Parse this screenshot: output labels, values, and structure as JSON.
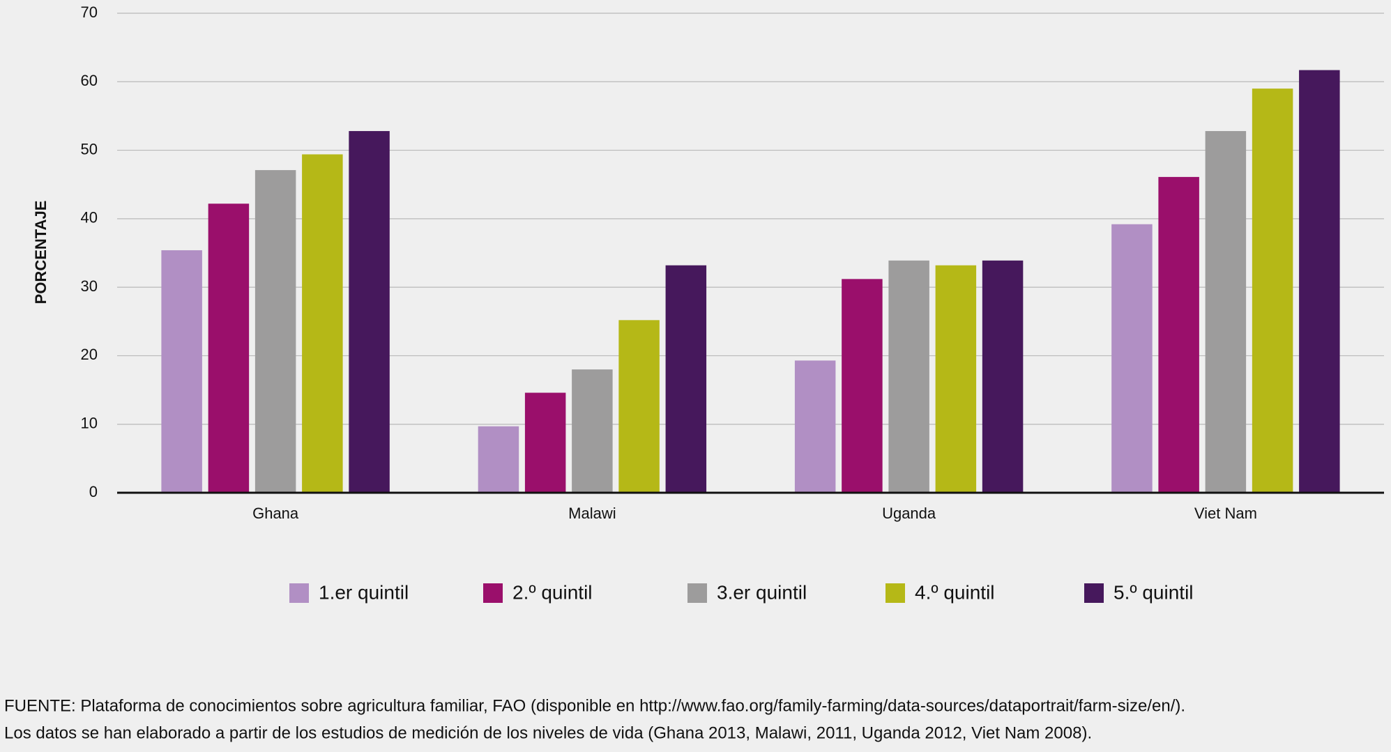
{
  "chart_data": {
    "type": "bar",
    "y_label": "PORCENTAJE",
    "categories": [
      "Ghana",
      "Malawi",
      "Uganda",
      "Viet Nam"
    ],
    "series": [
      {
        "name": "1.er quintil",
        "color": "#b18fc4",
        "values": [
          35.4,
          9.7,
          19.3,
          39.2
        ]
      },
      {
        "name": "2.º quintil",
        "color": "#9a0f6b",
        "values": [
          42.2,
          14.6,
          31.2,
          46.1
        ]
      },
      {
        "name": "3.er quintil",
        "color": "#9d9c9c",
        "values": [
          47.1,
          18.0,
          33.9,
          52.8
        ]
      },
      {
        "name": "4.º quintil",
        "color": "#b5b817",
        "values": [
          49.4,
          25.2,
          33.2,
          59.0
        ]
      },
      {
        "name": "5.º quintil",
        "color": "#46185c",
        "values": [
          52.8,
          33.2,
          33.9,
          61.7
        ]
      }
    ],
    "ylim": [
      0,
      70
    ],
    "yticks": [
      0,
      10,
      20,
      30,
      40,
      50,
      60,
      70
    ],
    "grid": true,
    "legend": "bottom",
    "notes": [
      "FUENTE: Plataforma de conocimientos sobre agricultura familiar, FAO (disponible en http://www.fao.org/family-farming/data-sources/dataportrait/farm-size/en/).",
      "Los datos se han elaborado a partir de los estudios de medición de los niveles de vida (Ghana 2013, Malawi, 2011, Uganda 2012, Viet Nam 2008)."
    ]
  }
}
